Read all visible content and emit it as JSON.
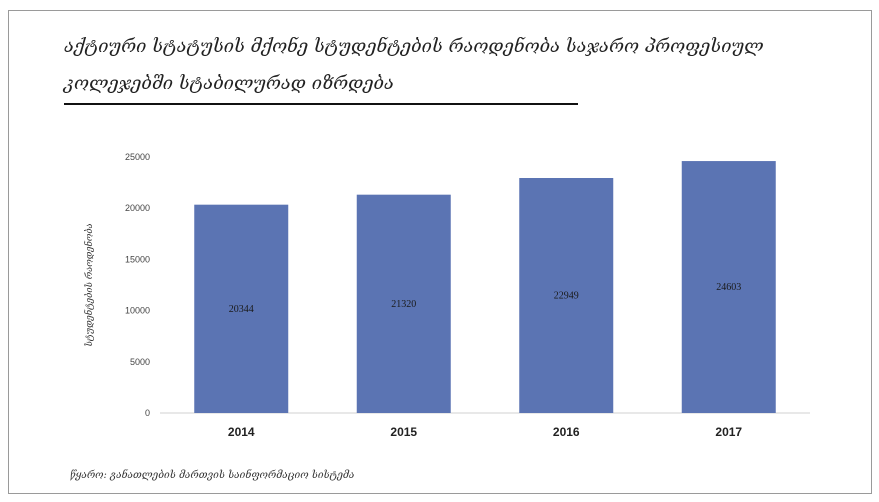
{
  "chart_data": {
    "type": "bar",
    "title": "აქტიური სტატუსის მქონე სტუდენტების რაოდენობა საჯარო პროფესიულ კოლეჯებში სტაბილურად იზრდება",
    "xlabel": "",
    "ylabel": "სტუდენტების რაოდენობა",
    "categories": [
      "2014",
      "2015",
      "2016",
      "2017"
    ],
    "values": [
      20344,
      21320,
      22949,
      24603
    ],
    "data_labels": [
      "20344",
      "21320",
      "22949",
      "24603"
    ],
    "ylim": [
      0,
      25000
    ],
    "yticks": [
      "0",
      "5000",
      "10000",
      "15000",
      "20000",
      "25000"
    ],
    "bar_color": "#5b74b3",
    "grid": false,
    "legend": "none"
  },
  "source": "წყარო: განათლების მართვის საინფორმაციო სისტემა"
}
